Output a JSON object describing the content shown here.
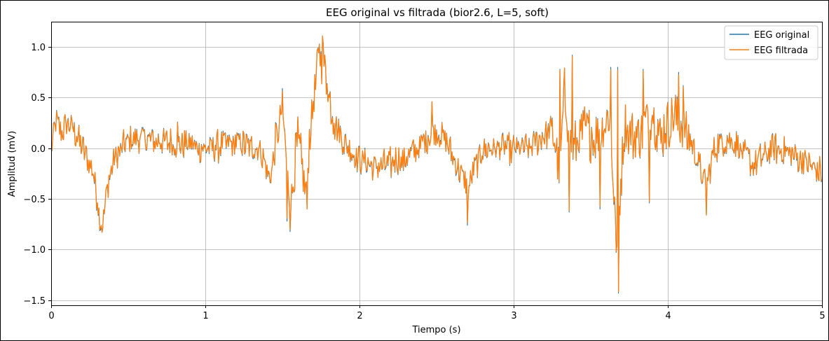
{
  "chart_data": {
    "type": "line",
    "title": "EEG original vs filtrada (bior2.6, L=5, soft)",
    "xlabel": "Tiempo (s)",
    "ylabel": "Amplitud (mV)",
    "xlim": [
      0,
      5
    ],
    "ylim": [
      -1.55,
      1.25
    ],
    "xticks": [
      0,
      1,
      2,
      3,
      4,
      5
    ],
    "xtick_labels": [
      "0",
      "1",
      "2",
      "3",
      "4",
      "5"
    ],
    "yticks": [
      -1.5,
      -1.0,
      -0.5,
      0.0,
      0.5,
      1.0
    ],
    "ytick_labels": [
      "−1.5",
      "−1.0",
      "−0.5",
      "0.0",
      "0.5",
      "1.0"
    ],
    "grid": true,
    "legend_position": "upper right",
    "series": [
      {
        "name": "EEG original",
        "color": "#1f77b4"
      },
      {
        "name": "EEG filtrada",
        "color": "#ff7f0e"
      }
    ],
    "anchors": [
      [
        0.0,
        0.0
      ],
      [
        0.03,
        0.25
      ],
      [
        0.07,
        0.18
      ],
      [
        0.12,
        0.25
      ],
      [
        0.18,
        0.1
      ],
      [
        0.22,
        -0.05
      ],
      [
        0.27,
        -0.2
      ],
      [
        0.3,
        -0.55
      ],
      [
        0.33,
        -0.78
      ],
      [
        0.36,
        -0.45
      ],
      [
        0.4,
        -0.15
      ],
      [
        0.48,
        0.05
      ],
      [
        0.6,
        0.1
      ],
      [
        0.8,
        0.05
      ],
      [
        1.0,
        0.0
      ],
      [
        1.2,
        0.05
      ],
      [
        1.35,
        0.0
      ],
      [
        1.42,
        -0.3
      ],
      [
        1.5,
        0.4
      ],
      [
        1.55,
        -0.6
      ],
      [
        1.6,
        0.1
      ],
      [
        1.65,
        -0.4
      ],
      [
        1.7,
        0.5
      ],
      [
        1.74,
        0.95
      ],
      [
        1.77,
        0.8
      ],
      [
        1.8,
        0.55
      ],
      [
        1.83,
        0.35
      ],
      [
        1.88,
        0.1
      ],
      [
        1.95,
        -0.05
      ],
      [
        2.1,
        -0.2
      ],
      [
        2.3,
        -0.1
      ],
      [
        2.5,
        0.2
      ],
      [
        2.6,
        -0.05
      ],
      [
        2.7,
        -0.4
      ],
      [
        2.8,
        0.0
      ],
      [
        2.95,
        0.0
      ],
      [
        3.1,
        0.0
      ],
      [
        3.25,
        0.2
      ],
      [
        3.3,
        -0.2
      ],
      [
        3.33,
        0.55
      ],
      [
        3.38,
        0.0
      ],
      [
        3.45,
        0.2
      ],
      [
        3.55,
        0.1
      ],
      [
        3.62,
        0.35
      ],
      [
        3.67,
        -0.95
      ],
      [
        3.72,
        0.2
      ],
      [
        3.8,
        0.1
      ],
      [
        3.9,
        0.4
      ],
      [
        3.95,
        0.1
      ],
      [
        4.05,
        0.35
      ],
      [
        4.1,
        0.2
      ],
      [
        4.18,
        -0.05
      ],
      [
        4.25,
        -0.4
      ],
      [
        4.3,
        0.0
      ],
      [
        4.4,
        0.1
      ],
      [
        4.55,
        -0.15
      ],
      [
        4.7,
        0.0
      ],
      [
        4.85,
        -0.1
      ],
      [
        5.0,
        -0.25
      ]
    ],
    "spikes": [
      [
        0.33,
        -0.83
      ],
      [
        0.3,
        -0.54
      ],
      [
        0.82,
        0.26
      ],
      [
        1.53,
        -0.72
      ],
      [
        1.5,
        0.59
      ],
      [
        1.66,
        -0.6
      ],
      [
        1.74,
        1.03
      ],
      [
        1.76,
        1.11
      ],
      [
        1.73,
        0.99
      ],
      [
        1.79,
        0.64
      ],
      [
        2.47,
        0.46
      ],
      [
        2.7,
        -0.76
      ],
      [
        3.3,
        0.78
      ],
      [
        3.38,
        0.92
      ],
      [
        3.36,
        -0.63
      ],
      [
        3.63,
        0.8
      ],
      [
        3.66,
        -0.68
      ],
      [
        3.675,
        0.8
      ],
      [
        3.68,
        -1.43
      ],
      [
        3.84,
        0.78
      ],
      [
        3.88,
        -0.54
      ],
      [
        4.07,
        0.75
      ],
      [
        4.1,
        0.62
      ],
      [
        4.25,
        -0.66
      ],
      [
        3.56,
        -0.6
      ]
    ],
    "n_points": 1000
  }
}
